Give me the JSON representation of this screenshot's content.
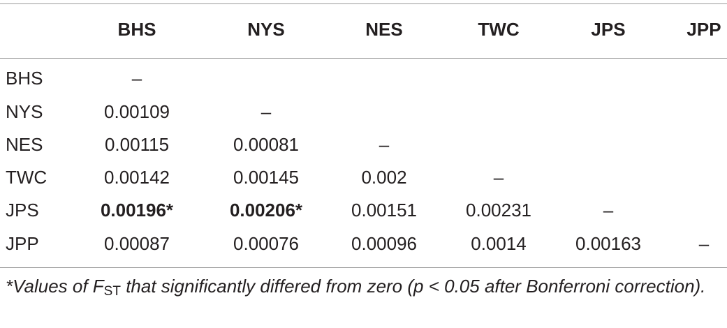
{
  "table": {
    "headers": [
      "BHS",
      "NYS",
      "NES",
      "TWC",
      "JPS",
      "JPP"
    ],
    "rows": [
      [
        "BHS",
        "–"
      ],
      [
        "NYS",
        "0.00109",
        "–"
      ],
      [
        "NES",
        "0.00115",
        "0.00081",
        "–"
      ],
      [
        "TWC",
        "0.00142",
        "0.00145",
        "0.002",
        "–"
      ],
      [
        "JPS",
        "0.00196*",
        "0.00206*",
        "0.00151",
        "0.00231",
        "–"
      ],
      [
        "JPP",
        "0.00087",
        "0.00076",
        "0.00096",
        "0.0014",
        "0.00163",
        "–"
      ]
    ],
    "bold_cells": [
      [
        4,
        1
      ],
      [
        4,
        2
      ]
    ]
  },
  "footnote": {
    "before": "*Values of F",
    "subscript": "ST",
    "after": "that significantly differed from zero (p < 0.05 after Bonferroni correction)."
  }
}
